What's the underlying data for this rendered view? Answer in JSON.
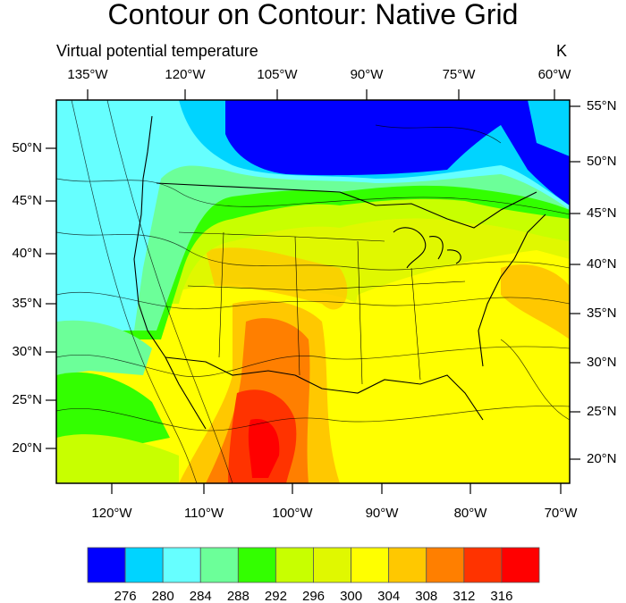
{
  "title": "Contour on Contour: Native Grid",
  "left_string": "Virtual potential temperature",
  "right_string": "K",
  "top_lon_labels": [
    "135°W",
    "120°W",
    "105°W",
    "90°W",
    "75°W",
    "60°W"
  ],
  "bottom_lon_labels": [
    "120°W",
    "110°W",
    "100°W",
    "90°W",
    "80°W",
    "70°W"
  ],
  "left_lat_labels": [
    "50°N",
    "45°N",
    "40°N",
    "35°N",
    "30°N",
    "25°N",
    "20°N"
  ],
  "right_lat_labels": [
    "55°N",
    "50°N",
    "45°N",
    "40°N",
    "35°N",
    "30°N",
    "25°N",
    "20°N"
  ],
  "colorbar": {
    "labels": [
      "276",
      "280",
      "284",
      "288",
      "292",
      "296",
      "300",
      "304",
      "308",
      "312",
      "316"
    ],
    "colors": [
      "#0000ff",
      "#00d4ff",
      "#66ffff",
      "#6cff99",
      "#33ff00",
      "#c8ff00",
      "#e0f800",
      "#ffff00",
      "#ffc800",
      "#ff7f00",
      "#ff3300",
      "#ff0000"
    ]
  }
}
